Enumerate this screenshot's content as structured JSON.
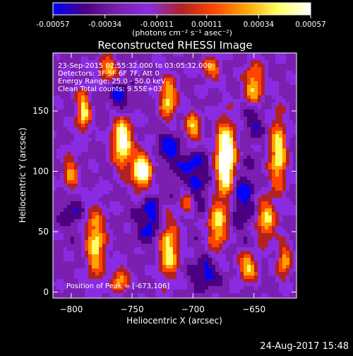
{
  "chart_data": {
    "type": "heatmap",
    "title": "Reconstructed RHESSI Image",
    "xlabel": "Heliocentric X (arcsec)",
    "ylabel": "Heliocentric Y (arcsec)",
    "xlim": [
      -815,
      -615
    ],
    "ylim": [
      -5,
      198
    ],
    "xticks": [
      -800,
      -750,
      -700,
      -650
    ],
    "yticks": [
      0,
      50,
      100,
      150
    ],
    "grid": false,
    "colorbar": {
      "ticks": [
        -0.00057,
        -0.00034,
        -0.00011,
        0.00011,
        0.00034,
        0.00057
      ],
      "tick_labels": [
        "-0.00057",
        "-0.00034",
        "-0.00011",
        "0.00011",
        "0.00034",
        "0.00057"
      ],
      "label": "(photons cm⁻² s⁻¹ asec⁻²)",
      "range": [
        -0.00057,
        0.00057
      ],
      "colors": [
        "#0000ff",
        "#4b0082",
        "#7a1fb0",
        "#8a2be2",
        "#b22222",
        "#ff4500",
        "#ffa500",
        "#ffff66",
        "#ffffff"
      ]
    },
    "annotations": [
      "23-Sep-2015 02:55:32.000 to 03:05:32.000",
      "Detectors: 3F 5F 6F 7F, Att 0",
      "Energy Range: 25.0 - 50.0 keV",
      "Clean     Total counts: 9.55E+03"
    ],
    "peak_label": "Position of Peak = [-673,106]",
    "peak_position": [
      -673,
      106
    ]
  },
  "footer": {
    "timestamp": "24-Aug-2017 15:48"
  }
}
